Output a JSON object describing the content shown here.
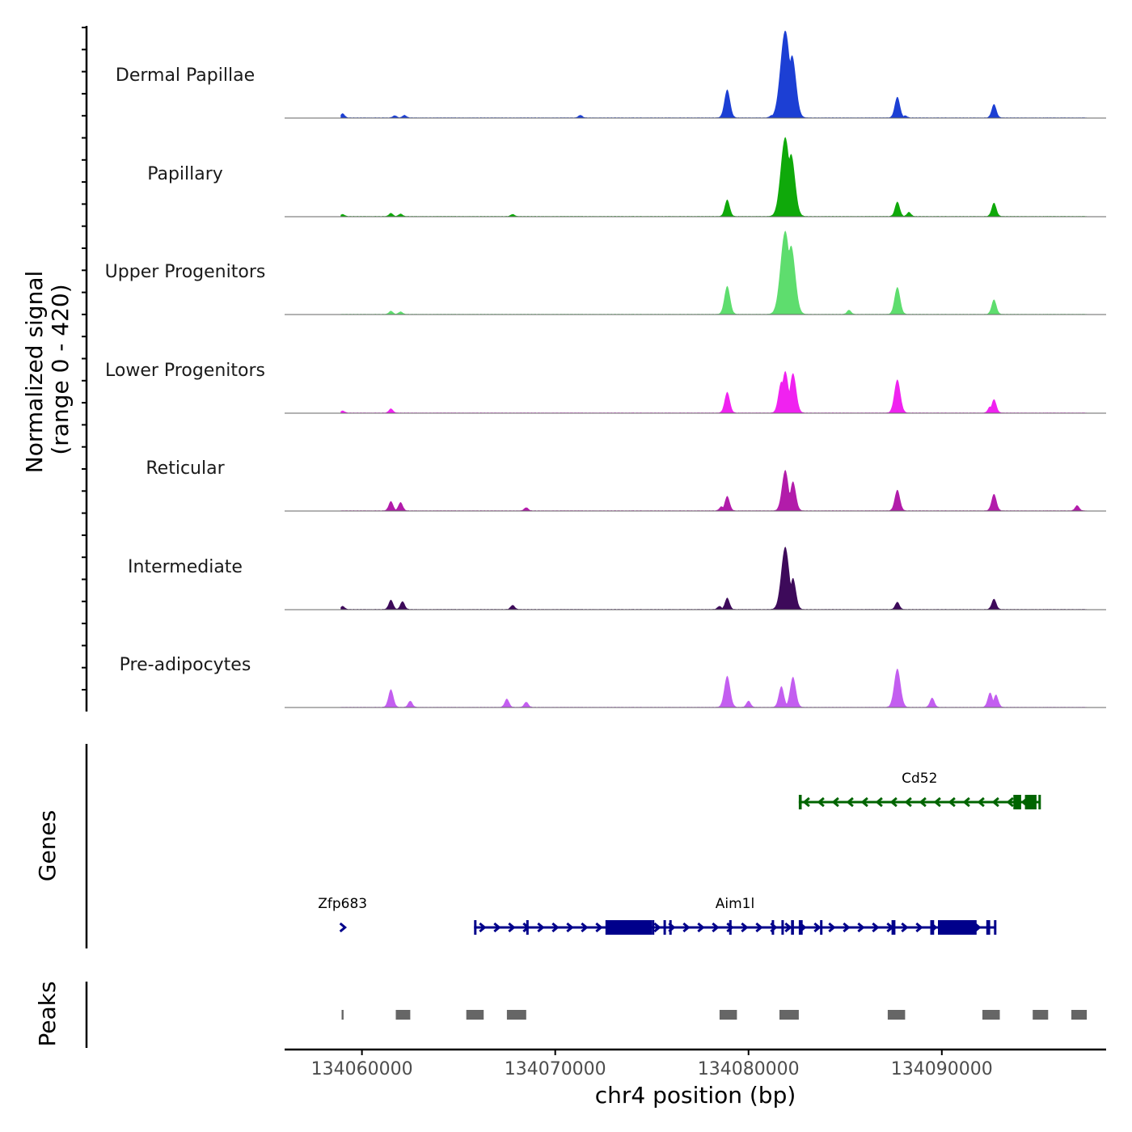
{
  "chart_data": {
    "type": "area",
    "title": "",
    "region": {
      "chromosome": "chr4",
      "start": 134056000,
      "end": 134098500
    },
    "xlabel": "chr4 position (bp)",
    "x_ticks": [
      134060000,
      134070000,
      134080000,
      134090000
    ],
    "x_tick_labels": [
      "134060000",
      "134070000",
      "134080000",
      "134090000"
    ],
    "ylabel": "Normalized signal",
    "ylabel_range": "(range 0 - 420)",
    "ylim": [
      0,
      420
    ],
    "series": [
      {
        "name": "Dermal Papillae",
        "color": "#1C3FD4",
        "peaks": [
          [
            134059000,
            20
          ],
          [
            134061700,
            10
          ],
          [
            134062200,
            12
          ],
          [
            134071300,
            12
          ],
          [
            134078900,
            135
          ],
          [
            134081200,
            12
          ],
          [
            134081900,
            420
          ],
          [
            134082250,
            300
          ],
          [
            134087700,
            100
          ],
          [
            134088100,
            10
          ],
          [
            134092700,
            65
          ]
        ]
      },
      {
        "name": "Papillary",
        "color": "#0FA90A",
        "peaks": [
          [
            134059000,
            10
          ],
          [
            134061500,
            15
          ],
          [
            134062000,
            12
          ],
          [
            134067800,
            10
          ],
          [
            134078900,
            80
          ],
          [
            134081600,
            45
          ],
          [
            134081900,
            380
          ],
          [
            134082200,
            300
          ],
          [
            134087700,
            70
          ],
          [
            134088300,
            20
          ],
          [
            134092700,
            65
          ]
        ]
      },
      {
        "name": "Upper Progenitors",
        "color": "#5EDD6E",
        "peaks": [
          [
            134061500,
            15
          ],
          [
            134062000,
            12
          ],
          [
            134078900,
            135
          ],
          [
            134081900,
            400
          ],
          [
            134082200,
            330
          ],
          [
            134085200,
            20
          ],
          [
            134087700,
            130
          ],
          [
            134092700,
            70
          ]
        ]
      },
      {
        "name": "Lower Progenitors",
        "color": "#F022F0",
        "peaks": [
          [
            134059000,
            10
          ],
          [
            134061500,
            20
          ],
          [
            134078900,
            100
          ],
          [
            134081700,
            150
          ],
          [
            134081900,
            200
          ],
          [
            134082300,
            190
          ],
          [
            134087700,
            160
          ],
          [
            134092500,
            30
          ],
          [
            134092700,
            65
          ]
        ]
      },
      {
        "name": "Reticular",
        "color": "#B21CAA",
        "peaks": [
          [
            134061500,
            45
          ],
          [
            134062000,
            40
          ],
          [
            134068500,
            15
          ],
          [
            134078600,
            20
          ],
          [
            134078900,
            70
          ],
          [
            134081900,
            195
          ],
          [
            134082300,
            140
          ],
          [
            134087700,
            100
          ],
          [
            134092700,
            80
          ],
          [
            134097000,
            25
          ]
        ]
      },
      {
        "name": "Intermediate",
        "color": "#3D0A5A",
        "peaks": [
          [
            134059000,
            15
          ],
          [
            134061500,
            45
          ],
          [
            134062100,
            38
          ],
          [
            134067800,
            20
          ],
          [
            134078500,
            15
          ],
          [
            134078900,
            55
          ],
          [
            134081700,
            50
          ],
          [
            134081900,
            300
          ],
          [
            134082300,
            150
          ],
          [
            134087700,
            35
          ],
          [
            134092700,
            50
          ]
        ]
      },
      {
        "name": "Pre-adipocytes",
        "color": "#C35EF0",
        "peaks": [
          [
            134061500,
            85
          ],
          [
            134062500,
            30
          ],
          [
            134067500,
            40
          ],
          [
            134068500,
            25
          ],
          [
            134078900,
            150
          ],
          [
            134080000,
            30
          ],
          [
            134081700,
            100
          ],
          [
            134082300,
            145
          ],
          [
            134087700,
            185
          ],
          [
            134089500,
            45
          ],
          [
            134092500,
            70
          ],
          [
            134092800,
            60
          ]
        ]
      }
    ],
    "genes": [
      {
        "name": "Cd52",
        "strand": "-",
        "color": "#006400",
        "start": 134082600,
        "end": 134095100,
        "exons": [
          [
            134082600,
            134082750
          ],
          [
            134093700,
            134094100
          ],
          [
            134094300,
            134094900
          ],
          [
            134095000,
            134095100
          ]
        ]
      },
      {
        "name": "Zfp683",
        "strand": "+",
        "color": "#00008B",
        "start": 134058950,
        "end": 134059050,
        "exons": []
      },
      {
        "name": "Aim1l",
        "strand": "+",
        "color": "#00008B",
        "start": 134065800,
        "end": 134092800,
        "exons": [
          [
            134065800,
            134065900
          ],
          [
            134068500,
            134068600
          ],
          [
            134072600,
            134075000
          ],
          [
            134075000,
            134075100
          ],
          [
            134075600,
            134075700
          ],
          [
            134075900,
            134076000
          ],
          [
            134079000,
            134079100
          ],
          [
            134081200,
            134081300
          ],
          [
            134081700,
            134081800
          ],
          [
            134082200,
            134082350
          ],
          [
            134082600,
            134082800
          ],
          [
            134083700,
            134083800
          ],
          [
            134087400,
            134087600
          ],
          [
            134089400,
            134089600
          ],
          [
            134089800,
            134091800
          ],
          [
            134092300,
            134092500
          ],
          [
            134092700,
            134092800
          ]
        ]
      }
    ],
    "peaks_track": [
      [
        134058950,
        134059050
      ],
      [
        134061750,
        134062500
      ],
      [
        134065400,
        134066300
      ],
      [
        134067500,
        134068500
      ],
      [
        134078500,
        134079400
      ],
      [
        134081600,
        134082600
      ],
      [
        134087200,
        134088100
      ],
      [
        134092100,
        134093000
      ],
      [
        134094700,
        134095500
      ],
      [
        134096700,
        134097500
      ]
    ],
    "track_titles": {
      "genes": "Genes",
      "peaks": "Peaks"
    }
  }
}
